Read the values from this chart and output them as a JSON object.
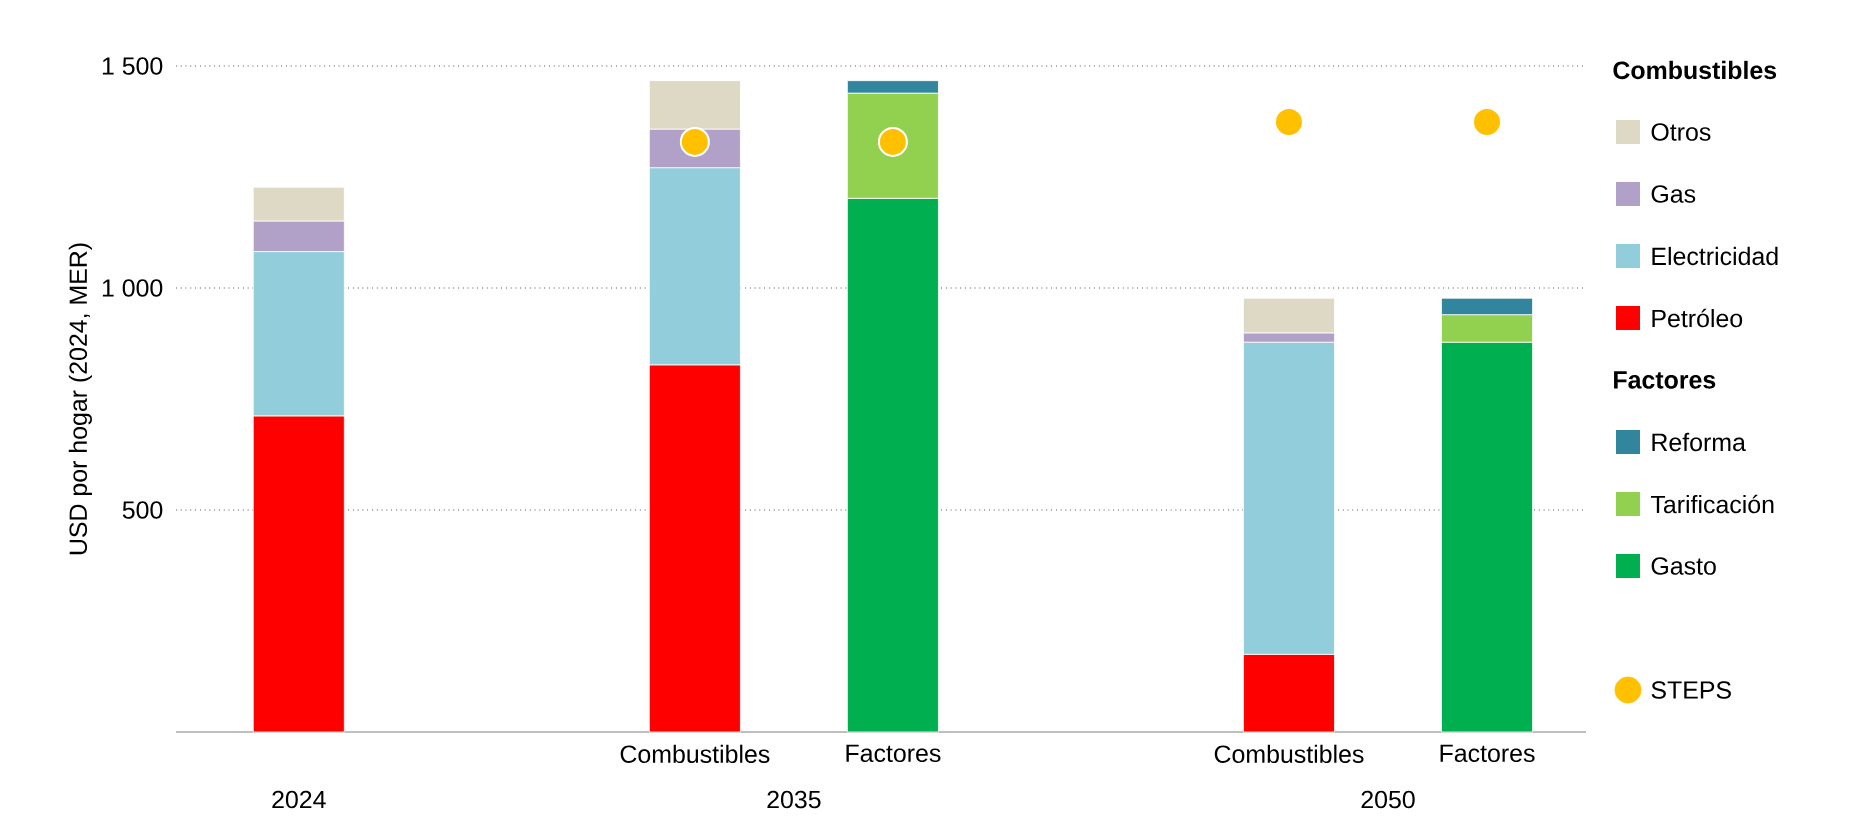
{
  "chart_data": {
    "type": "bar",
    "stacked": true,
    "ylabel": "USD por hogar (2024, MER)",
    "categories": [
      null,
      null,
      "Combustibles",
      "Factores",
      null,
      "Combustibles",
      "Factores"
    ],
    "ylim": [
      0,
      1500
    ],
    "yticks": [
      {
        "value": 500,
        "label": "500"
      },
      {
        "value": 1000,
        "label": "1 000"
      },
      {
        "value": 1500,
        "label": "1 500"
      }
    ],
    "grid": "y",
    "legend": "right",
    "legend_title": "Combustibles",
    "annotations": [
      "Factores",
      "2024",
      "2035",
      "2050"
    ],
    "series": [
      {
        "name": "Petróleo",
        "color": "#ff0000",
        "values": [
          712,
          null,
          827,
          null,
          null,
          175,
          null
        ]
      },
      {
        "name": "Electricidad",
        "color": "#92cddc",
        "values": [
          370,
          null,
          444,
          null,
          null,
          703,
          null
        ]
      },
      {
        "name": "Gas",
        "color": "#b1a0c7",
        "values": [
          69,
          null,
          87,
          null,
          null,
          21,
          null
        ]
      },
      {
        "name": "Otros",
        "color": "#ddd9c4",
        "values": [
          76,
          null,
          109,
          null,
          null,
          78,
          null
        ]
      },
      {
        "name": "Gasto",
        "color": "#00b050",
        "values": [
          null,
          null,
          null,
          1202,
          null,
          null,
          878
        ]
      },
      {
        "name": "Tarificación",
        "color": "#92d050",
        "values": [
          null,
          null,
          null,
          237,
          null,
          null,
          62
        ]
      },
      {
        "name": "Reforma",
        "color": "#31859c",
        "values": [
          null,
          null,
          null,
          28,
          null,
          null,
          37
        ]
      },
      {
        "name": "STEPS",
        "type": "scatter",
        "marker": "circle",
        "color": "#ffc000",
        "values": [
          null,
          null,
          1329,
          1329,
          null,
          1374,
          1374
        ]
      }
    ]
  }
}
